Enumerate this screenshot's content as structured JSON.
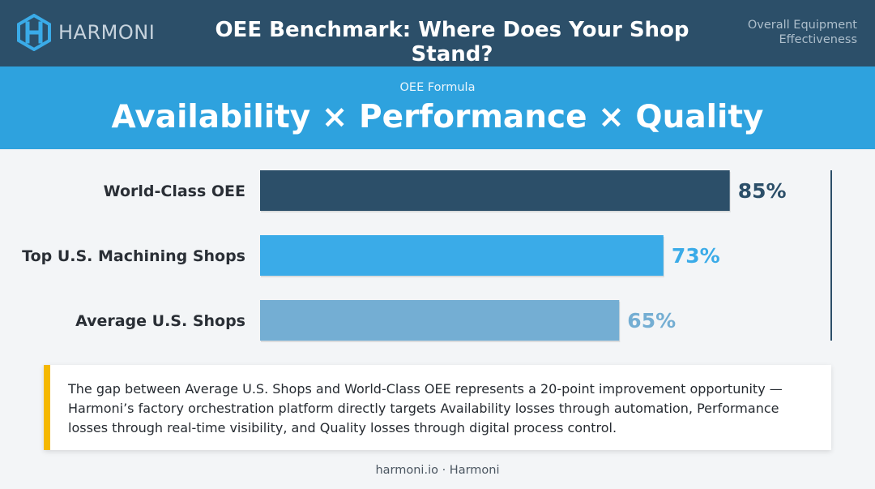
{
  "header": {
    "brand": "HARMONI",
    "title": "OEE Benchmark: Where Does Your Shop Stand?",
    "subtitle_line1": "Overall Equipment",
    "subtitle_line2": "Effectiveness"
  },
  "formula": {
    "caption": "OEE Formula",
    "text": "Availability × Performance × Quality"
  },
  "chart_data": {
    "type": "bar",
    "orientation": "horizontal",
    "categories": [
      "World-Class OEE",
      "Top U.S. Machining Shops",
      "Average U.S. Shops"
    ],
    "values": [
      85,
      73,
      65
    ],
    "value_labels": [
      "85%",
      "73%",
      "65%"
    ],
    "unit": "%",
    "xlim": [
      0,
      100
    ],
    "colors": [
      "#2c4f69",
      "#3aabe8",
      "#74aed3"
    ],
    "title": "",
    "xlabel": "",
    "ylabel": "",
    "grid": false
  },
  "callout": {
    "text": "The gap between Average U.S. Shops and World-Class OEE represents a 20-point improvement opportunity — Harmoni’s factory orchestration platform directly targets Availability losses through automation, Performance losses through real-time visibility, and Quality losses through digital process control.",
    "accent_color": "#f5b800"
  },
  "footer": {
    "text": "harmoni.io · Harmoni"
  }
}
